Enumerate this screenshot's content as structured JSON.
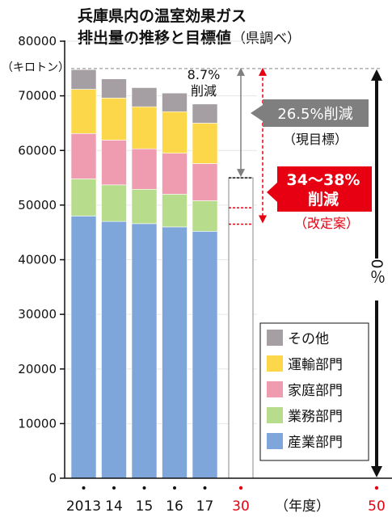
{
  "chart_data": {
    "type": "bar",
    "stacked": true,
    "title_line1": "兵庫県内の温室効果ガス",
    "title_line2": "排出量の推移と目標値",
    "title_source": "（県調べ）",
    "ylabel": "（キロトン）",
    "xlabel": "（年度）",
    "ylim": [
      0,
      80000
    ],
    "yticks": [
      0,
      10000,
      20000,
      30000,
      40000,
      50000,
      60000,
      70000,
      80000
    ],
    "grid": true,
    "legend_position": "bottom-right",
    "categories": [
      "2013",
      "14",
      "15",
      "16",
      "17"
    ],
    "future_categories": [
      "30",
      "50"
    ],
    "series": [
      {
        "name": "産業部門",
        "color": "#7ea6da",
        "values": [
          48000,
          47000,
          46600,
          46000,
          45200
        ]
      },
      {
        "name": "業務部門",
        "color": "#b7dc8c",
        "values": [
          6800,
          6700,
          6300,
          6000,
          5600
        ]
      },
      {
        "name": "家庭部門",
        "color": "#ef9bb0",
        "values": [
          8300,
          8200,
          7400,
          7500,
          6800
        ]
      },
      {
        "name": "運輸部門",
        "color": "#fbd749",
        "values": [
          8100,
          7700,
          7700,
          7600,
          7400
        ]
      },
      {
        "name": "その他",
        "color": "#a59ea3",
        "values": [
          3600,
          3500,
          3500,
          3400,
          3500
        ]
      }
    ],
    "annotations": {
      "reduction_2017": "8.7%\n削減",
      "current_target_label": "26.5%削減",
      "current_target_sub": "（現目標）",
      "current_target_value": 55000,
      "revised_target_label": "34～38%\n削減",
      "revised_target_sub": "（改定案）",
      "revised_target_values": [
        49500,
        46500
      ],
      "goal_2050_label": "0％",
      "baseline_value": 75000
    },
    "colors": {
      "current_target": "#7f7f7f",
      "revised_target": "#e60012",
      "future_year": "#e60012"
    }
  }
}
